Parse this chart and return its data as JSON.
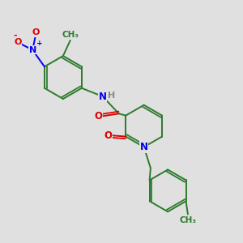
{
  "bg_color": "#e0e0e0",
  "bond_color": "#2d7a2d",
  "N_color": "#0000ee",
  "O_color": "#dd0000",
  "H_color": "#888888",
  "line_width": 1.4,
  "figsize": [
    3.0,
    3.0
  ],
  "dpi": 100,
  "xlim": [
    0,
    10
  ],
  "ylim": [
    0,
    10
  ]
}
